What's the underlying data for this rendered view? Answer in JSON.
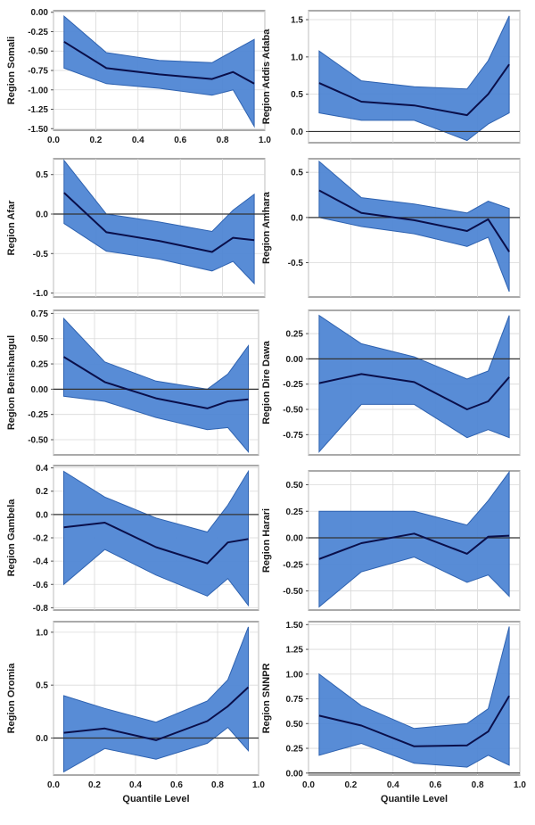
{
  "figure": {
    "band_color": "#4f86d4",
    "band_edge_color": "#2e62b0",
    "line_color": "#0a0f4a",
    "zero_line_color": "#333333",
    "grid_color": "#d9d9d9",
    "frame_color": "#555555"
  },
  "chart_data": [
    {
      "type": "line",
      "ylabel": "Region Somali",
      "xlabel": "",
      "x": [
        0.05,
        0.25,
        0.5,
        0.75,
        0.85,
        0.95
      ],
      "series": [
        {
          "role": "estimate",
          "values": [
            -0.38,
            -0.72,
            -0.8,
            -0.86,
            -0.77,
            -0.92
          ]
        },
        {
          "role": "upper",
          "values": [
            -0.05,
            -0.52,
            -0.62,
            -0.65,
            -0.5,
            -0.35
          ]
        },
        {
          "role": "lower",
          "values": [
            -0.72,
            -0.92,
            -0.98,
            -1.07,
            -1.0,
            -1.47
          ]
        }
      ],
      "xlim": [
        0,
        1.0
      ],
      "ylim": [
        -1.52,
        0.02
      ],
      "yticks": [
        0.0,
        -0.25,
        -0.5,
        -0.75,
        -1.0,
        -1.25,
        -1.5
      ],
      "ytick_labels": [
        "0.00",
        "-0.25",
        "-0.50",
        "-0.75",
        "-1.00",
        "-1.25",
        "-1.50"
      ],
      "xticks": [
        0,
        0.2,
        0.4,
        0.6,
        0.8,
        1.0
      ],
      "xtick_labels": [
        "0.0",
        "0.2",
        "0.4",
        "0.6",
        "0.8",
        "1.0"
      ],
      "zero_line": false
    },
    {
      "type": "line",
      "ylabel": "Region Addis Adaba",
      "xlabel": "",
      "x": [
        0.05,
        0.25,
        0.5,
        0.75,
        0.85,
        0.95
      ],
      "series": [
        {
          "role": "estimate",
          "values": [
            0.65,
            0.4,
            0.35,
            0.22,
            0.5,
            0.9
          ]
        },
        {
          "role": "upper",
          "values": [
            1.08,
            0.68,
            0.6,
            0.57,
            0.95,
            1.55
          ]
        },
        {
          "role": "lower",
          "values": [
            0.25,
            0.15,
            0.15,
            -0.12,
            0.1,
            0.25
          ]
        }
      ],
      "xlim": [
        0,
        1.0
      ],
      "ylim": [
        -0.15,
        1.62
      ],
      "yticks": [
        0.0,
        0.5,
        1.0,
        1.5
      ],
      "ytick_labels": [
        "0.0",
        "0.5",
        "1.0",
        "1.5"
      ],
      "xticks": [
        0,
        0.2,
        0.4,
        0.6,
        0.8,
        1.0
      ],
      "xtick_labels": [],
      "zero_line": true
    },
    {
      "type": "line",
      "ylabel": "Region Afar",
      "xlabel": "",
      "x": [
        0.05,
        0.25,
        0.5,
        0.75,
        0.85,
        0.95
      ],
      "series": [
        {
          "role": "estimate",
          "values": [
            0.27,
            -0.23,
            -0.34,
            -0.48,
            -0.3,
            -0.33
          ]
        },
        {
          "role": "upper",
          "values": [
            0.68,
            0.0,
            -0.1,
            -0.22,
            0.05,
            0.25
          ]
        },
        {
          "role": "lower",
          "values": [
            -0.12,
            -0.47,
            -0.57,
            -0.72,
            -0.6,
            -0.88
          ]
        }
      ],
      "xlim": [
        0,
        1.0
      ],
      "ylim": [
        -1.05,
        0.7
      ],
      "yticks": [
        0.5,
        0.0,
        -0.5,
        -1.0
      ],
      "ytick_labels": [
        "0.5",
        "0.0",
        "-0.5",
        "-1.0"
      ],
      "xticks": [
        0,
        0.2,
        0.4,
        0.6,
        0.8,
        1.0
      ],
      "xtick_labels": [],
      "zero_line": true
    },
    {
      "type": "line",
      "ylabel": "Region Amhara",
      "xlabel": "",
      "x": [
        0.05,
        0.25,
        0.5,
        0.75,
        0.85,
        0.95
      ],
      "series": [
        {
          "role": "estimate",
          "values": [
            0.3,
            0.05,
            -0.03,
            -0.15,
            -0.02,
            -0.38
          ]
        },
        {
          "role": "upper",
          "values": [
            0.62,
            0.22,
            0.15,
            0.05,
            0.18,
            0.1
          ]
        },
        {
          "role": "lower",
          "values": [
            0.0,
            -0.1,
            -0.18,
            -0.32,
            -0.22,
            -0.82
          ]
        }
      ],
      "xlim": [
        0,
        1.0
      ],
      "ylim": [
        -0.88,
        0.65
      ],
      "yticks": [
        0.5,
        0.0,
        -0.5
      ],
      "ytick_labels": [
        "0.5",
        "0.0",
        "-0.5"
      ],
      "xticks": [
        0,
        0.2,
        0.4,
        0.6,
        0.8,
        1.0
      ],
      "xtick_labels": [],
      "zero_line": true
    },
    {
      "type": "line",
      "ylabel": "Region Benishangul",
      "xlabel": "",
      "x": [
        0.05,
        0.25,
        0.5,
        0.75,
        0.85,
        0.95
      ],
      "series": [
        {
          "role": "estimate",
          "values": [
            0.32,
            0.07,
            -0.09,
            -0.19,
            -0.12,
            -0.1
          ]
        },
        {
          "role": "upper",
          "values": [
            0.7,
            0.27,
            0.08,
            0.0,
            0.15,
            0.43
          ]
        },
        {
          "role": "lower",
          "values": [
            -0.07,
            -0.12,
            -0.28,
            -0.4,
            -0.38,
            -0.62
          ]
        }
      ],
      "xlim": [
        0,
        1.0
      ],
      "ylim": [
        -0.65,
        0.78
      ],
      "yticks": [
        0.75,
        0.5,
        0.25,
        0.0,
        -0.25,
        -0.5
      ],
      "ytick_labels": [
        "0.75",
        "0.50",
        "0.25",
        "0.00",
        "-0.25",
        "-0.50"
      ],
      "xticks": [
        0,
        0.2,
        0.4,
        0.6,
        0.8,
        1.0
      ],
      "xtick_labels": [],
      "zero_line": true
    },
    {
      "type": "line",
      "ylabel": "Region Dire Dawa",
      "xlabel": "",
      "x": [
        0.05,
        0.25,
        0.5,
        0.75,
        0.85,
        0.95
      ],
      "series": [
        {
          "role": "estimate",
          "values": [
            -0.24,
            -0.15,
            -0.23,
            -0.5,
            -0.42,
            -0.18
          ]
        },
        {
          "role": "upper",
          "values": [
            0.43,
            0.15,
            0.02,
            -0.2,
            -0.12,
            0.43
          ]
        },
        {
          "role": "lower",
          "values": [
            -0.92,
            -0.45,
            -0.45,
            -0.78,
            -0.7,
            -0.78
          ]
        }
      ],
      "xlim": [
        0,
        1.0
      ],
      "ylim": [
        -0.95,
        0.48
      ],
      "yticks": [
        0.25,
        0.0,
        -0.25,
        -0.5,
        -0.75
      ],
      "ytick_labels": [
        "0.25",
        "0.00",
        "-0.25",
        "-0.50",
        "-0.75"
      ],
      "xticks": [
        0,
        0.2,
        0.4,
        0.6,
        0.8,
        1.0
      ],
      "xtick_labels": [],
      "zero_line": true
    },
    {
      "type": "line",
      "ylabel": "Region Gambela",
      "xlabel": "",
      "x": [
        0.05,
        0.25,
        0.5,
        0.75,
        0.85,
        0.95
      ],
      "series": [
        {
          "role": "estimate",
          "values": [
            -0.11,
            -0.07,
            -0.28,
            -0.42,
            -0.24,
            -0.21
          ]
        },
        {
          "role": "upper",
          "values": [
            0.37,
            0.15,
            -0.03,
            -0.15,
            0.08,
            0.37
          ]
        },
        {
          "role": "lower",
          "values": [
            -0.6,
            -0.3,
            -0.52,
            -0.7,
            -0.55,
            -0.78
          ]
        }
      ],
      "xlim": [
        0,
        1.0
      ],
      "ylim": [
        -0.82,
        0.42
      ],
      "yticks": [
        0.4,
        0.2,
        0.0,
        -0.2,
        -0.4,
        -0.6,
        -0.8
      ],
      "ytick_labels": [
        "0.4",
        "0.2",
        "0.0",
        "-0.2",
        "-0.4",
        "-0.6",
        "-0.8"
      ],
      "xticks": [
        0,
        0.2,
        0.4,
        0.6,
        0.8,
        1.0
      ],
      "xtick_labels": [],
      "zero_line": true
    },
    {
      "type": "line",
      "ylabel": "Region Harari",
      "xlabel": "",
      "x": [
        0.05,
        0.25,
        0.5,
        0.75,
        0.85,
        0.95
      ],
      "series": [
        {
          "role": "estimate",
          "values": [
            -0.2,
            -0.05,
            0.04,
            -0.15,
            0.01,
            0.02
          ]
        },
        {
          "role": "upper",
          "values": [
            0.25,
            0.25,
            0.25,
            0.12,
            0.35,
            0.62
          ]
        },
        {
          "role": "lower",
          "values": [
            -0.65,
            -0.32,
            -0.18,
            -0.42,
            -0.35,
            -0.55
          ]
        }
      ],
      "xlim": [
        0,
        1.0
      ],
      "ylim": [
        -0.68,
        0.63
      ],
      "yticks": [
        0.5,
        0.25,
        0.0,
        -0.25,
        -0.5
      ],
      "ytick_labels": [
        "0.50",
        "0.25",
        "0.00",
        "-0.25",
        "-0.50"
      ],
      "xticks": [
        0,
        0.2,
        0.4,
        0.6,
        0.8,
        1.0
      ],
      "xtick_labels": [],
      "zero_line": true
    },
    {
      "type": "line",
      "ylabel": "Region Oromia",
      "xlabel": "Quantile Level",
      "x": [
        0.05,
        0.25,
        0.5,
        0.75,
        0.85,
        0.95
      ],
      "series": [
        {
          "role": "estimate",
          "values": [
            0.05,
            0.09,
            -0.02,
            0.16,
            0.3,
            0.48
          ]
        },
        {
          "role": "upper",
          "values": [
            0.4,
            0.28,
            0.15,
            0.35,
            0.55,
            1.05
          ]
        },
        {
          "role": "lower",
          "values": [
            -0.32,
            -0.1,
            -0.2,
            -0.05,
            0.1,
            -0.12
          ]
        }
      ],
      "xlim": [
        0,
        1.0
      ],
      "ylim": [
        -0.35,
        1.1
      ],
      "yticks": [
        1.0,
        0.5,
        0.0
      ],
      "ytick_labels": [
        "1.0",
        "0.5",
        "0.0"
      ],
      "xticks": [
        0,
        0.2,
        0.4,
        0.6,
        0.8,
        1.0
      ],
      "xtick_labels": [
        "0.0",
        "0.2",
        "0.4",
        "0.6",
        "0.8",
        "1.0"
      ],
      "zero_line": true
    },
    {
      "type": "line",
      "ylabel": "Region SNNPR",
      "xlabel": "Quantile Level",
      "x": [
        0.05,
        0.25,
        0.5,
        0.75,
        0.85,
        0.95
      ],
      "series": [
        {
          "role": "estimate",
          "values": [
            0.58,
            0.48,
            0.27,
            0.28,
            0.42,
            0.78
          ]
        },
        {
          "role": "upper",
          "values": [
            1.0,
            0.68,
            0.45,
            0.5,
            0.65,
            1.48
          ]
        },
        {
          "role": "lower",
          "values": [
            0.18,
            0.3,
            0.1,
            0.06,
            0.18,
            0.08
          ]
        }
      ],
      "xlim": [
        0,
        1.0
      ],
      "ylim": [
        -0.02,
        1.53
      ],
      "yticks": [
        1.5,
        1.25,
        1.0,
        0.75,
        0.5,
        0.25,
        0.0
      ],
      "ytick_labels": [
        "1.50",
        "1.25",
        "1.00",
        "0.75",
        "0.50",
        "0.25",
        "0.00"
      ],
      "xticks": [
        0,
        0.2,
        0.4,
        0.6,
        0.8,
        1.0
      ],
      "xtick_labels": [
        "0.0",
        "0.2",
        "0.4",
        "0.6",
        "0.8",
        "1.0"
      ],
      "zero_line": true
    }
  ]
}
